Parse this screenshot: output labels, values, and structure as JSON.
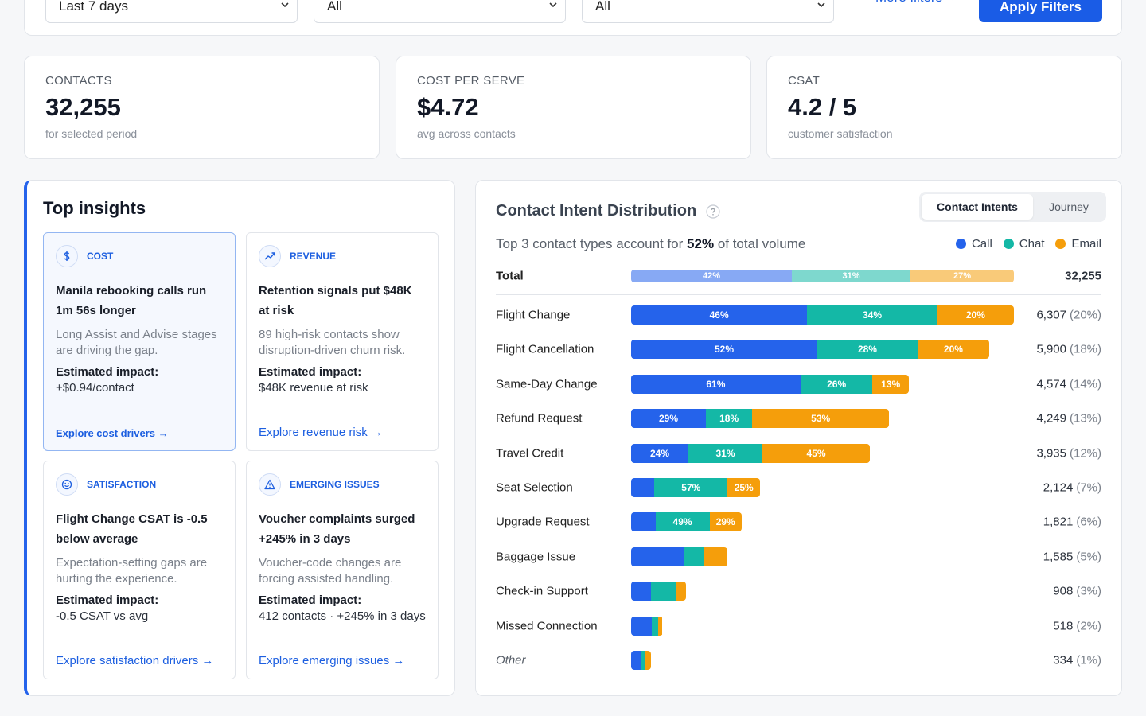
{
  "filters": {
    "selects": [
      "Last 7 days",
      "All",
      "All"
    ],
    "more_filters": "More filters",
    "apply": "Apply Filters"
  },
  "kpis": [
    {
      "label": "CONTACTS",
      "value": "32,255",
      "note": "for selected period"
    },
    {
      "label": "COST PER SERVE",
      "value": "$4.72",
      "note": "avg across contacts"
    },
    {
      "label": "CSAT",
      "value": "4.2 / 5",
      "note": "customer satisfaction"
    }
  ],
  "insights": {
    "title": "Top insights",
    "cards": [
      {
        "tag": "COST",
        "title": "Manila rebooking calls run 1m 56s longer",
        "text": "Long Assist and Advise stages are driving the gap.",
        "impact_label": "Estimated impact:",
        "impact": "+$0.94/contact",
        "link": "Explore cost drivers →"
      },
      {
        "tag": "REVENUE",
        "title": "Retention signals put $48K at risk",
        "text": "89 high-risk contacts show disruption-driven churn risk.",
        "impact_label": "Estimated impact:",
        "impact": "$48K revenue at risk",
        "link": "Explore revenue risk →"
      },
      {
        "tag": "SATISFACTION",
        "title": "Flight Change CSAT is -0.5 below average",
        "text": "Expectation-setting gaps are hurting the experience.",
        "impact_label": "Estimated impact:",
        "impact": "-0.5 CSAT vs avg",
        "link": "Explore satisfaction drivers →"
      },
      {
        "tag": "EMERGING ISSUES",
        "title": "Voucher complaints surged +245% in 3 days",
        "text": "Voucher-code changes are forcing assisted handling.",
        "impact_label": "Estimated impact:",
        "impact": "412 contacts · +245% in 3 days",
        "link": "Explore emerging issues →"
      }
    ]
  },
  "panel": {
    "tabs": [
      "Contact Intents",
      "Journey"
    ]
  },
  "chart_data": {
    "type": "stacked-bar",
    "title": "Contact Intent Distribution",
    "subtitle_before": "Top 3 contact types account for",
    "subtitle_emphasis": "52%",
    "subtitle_after": "of total volume",
    "total": {
      "label": "Total",
      "values": [
        42,
        31,
        27
      ],
      "value_labels": [
        "42%",
        "31%",
        "27%"
      ],
      "count": 32255,
      "count_label": "32,255"
    },
    "categories": [
      "Flight Change",
      "Flight Cancellation",
      "Same-Day Change",
      "Refund Request",
      "Travel Credit",
      "Seat Selection",
      "Upgrade Request",
      "Baggage Issue",
      "Check-in Support",
      "Missed Connection",
      "Other"
    ],
    "series": [
      {
        "name": "Call",
        "color": "#2563eb",
        "values": [
          46,
          52,
          61,
          29,
          24,
          18,
          22,
          55,
          36,
          66,
          48
        ],
        "value_labels": [
          "46%",
          "52%",
          "61%",
          "29%",
          "24%",
          null,
          null,
          null,
          null,
          null,
          null
        ]
      },
      {
        "name": "Chat",
        "color": "#14b8a6",
        "values": [
          34,
          28,
          26,
          18,
          31,
          57,
          49,
          21,
          46,
          21,
          24
        ],
        "value_labels": [
          "34%",
          "28%",
          "26%",
          "18%",
          "31%",
          "57%",
          "49%",
          null,
          null,
          null,
          null
        ]
      },
      {
        "name": "Email",
        "color": "#f59e0b",
        "values": [
          20,
          20,
          13,
          53,
          45,
          25,
          29,
          24,
          18,
          13,
          28
        ],
        "value_labels": [
          "20%",
          "20%",
          "13%",
          "53%",
          "45%",
          "25%",
          "29%",
          null,
          null,
          null,
          null
        ]
      }
    ],
    "counts": [
      6307,
      5900,
      4574,
      4249,
      3935,
      2124,
      1821,
      1585,
      908,
      518,
      334
    ],
    "count_labels": [
      "6,307",
      "5,900",
      "4,574",
      "4,249",
      "3,935",
      "2,124",
      "1,821",
      "1,585",
      "908",
      "518",
      "334"
    ],
    "shares": [
      20,
      18,
      14,
      13,
      12,
      7,
      6,
      5,
      3,
      2,
      1
    ],
    "share_labels": [
      "(20%)",
      "(18%)",
      "(14%)",
      "(13%)",
      "(12%)",
      "(7%)",
      "(6%)",
      "(5%)",
      "(3%)",
      "(2%)",
      "(1%)"
    ]
  }
}
